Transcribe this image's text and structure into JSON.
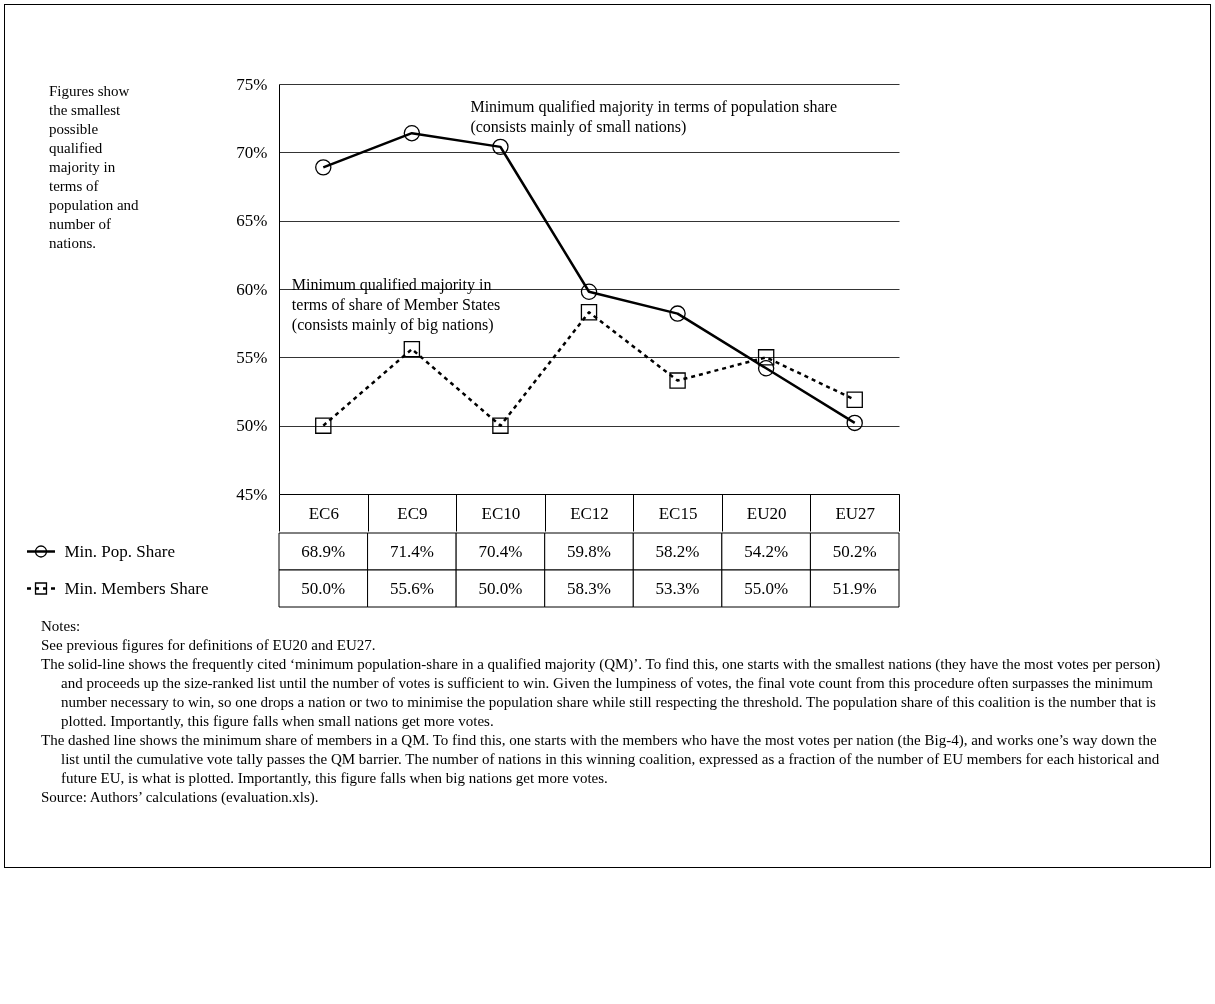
{
  "chart_data": {
    "type": "line",
    "categories": [
      "EC6",
      "EC9",
      "EC10",
      "EC12",
      "EC15",
      "EU20",
      "EU27"
    ],
    "ylim": [
      45,
      75
    ],
    "yticks": [
      {
        "value": 45,
        "label": "45%"
      },
      {
        "value": 50,
        "label": "50%"
      },
      {
        "value": 55,
        "label": "55%"
      },
      {
        "value": 60,
        "label": "60%"
      },
      {
        "value": 65,
        "label": "65%"
      },
      {
        "value": 70,
        "label": "70%"
      },
      {
        "value": 75,
        "label": "75%"
      }
    ],
    "grid": "y",
    "legend": "left",
    "series": [
      {
        "name": "Min. Pop. Share",
        "color": "#000000",
        "marker": "circle",
        "line_style": "solid",
        "values": [
          68.9,
          71.4,
          70.4,
          59.8,
          58.2,
          54.2,
          50.2
        ],
        "value_labels": [
          "68.9%",
          "71.4%",
          "70.4%",
          "59.8%",
          "58.2%",
          "54.2%",
          "50.2%"
        ]
      },
      {
        "name": "Min. Members Share",
        "color": "#000000",
        "marker": "square",
        "line_style": "dashed",
        "values": [
          50.0,
          55.6,
          50.0,
          58.3,
          53.3,
          55.0,
          51.9
        ],
        "value_labels": [
          "50.0%",
          "55.6%",
          "50.0%",
          "58.3%",
          "53.3%",
          "55.0%",
          "51.9%"
        ]
      }
    ],
    "annotations": [
      "Figures show the smallest possible qualified majority in terms of population and number of nations.",
      {
        "text": "Minimum qualified majority in terms of population share (consists mainly of small nations)",
        "x": "EC10",
        "y": 70.4
      },
      {
        "text": "Minimum qualified majority in terms of share of Member States (consists mainly of big nations)",
        "x": "EC9",
        "y": 55.6
      },
      "Notes:",
      "See previous figures for definitions of EU20 and EU27.",
      "The solid-line shows the frequently cited ‘minimum population-share in a qualified majority (QM)’. To find this, one starts with the smallest nations (they have the most votes per person) and proceeds up the size-ranked list until the number of votes is sufficient to win. Given the lumpiness of votes, the final vote count from this procedure often surpasses the minimum number necessary to win, so one drops a nation or two to minimise the population share while still respecting the threshold. The population share of this coalition is the number that is plotted. Importantly, this figure falls when small nations get more votes.",
      "The dashed line shows the minimum share of members in a QM. To find this, one starts with the members who have the most votes per nation (the Big-4), and works one’s way down the list until the cumulative vote tally passes the QM barrier. The number of nations in this winning coalition, expressed as a fraction of the number of EU members for each historical and future EU, is what is plotted. Importantly, this figure falls when big nations get more votes.",
      "Source: Authors’ calculations (evaluation.xls)."
    ]
  }
}
